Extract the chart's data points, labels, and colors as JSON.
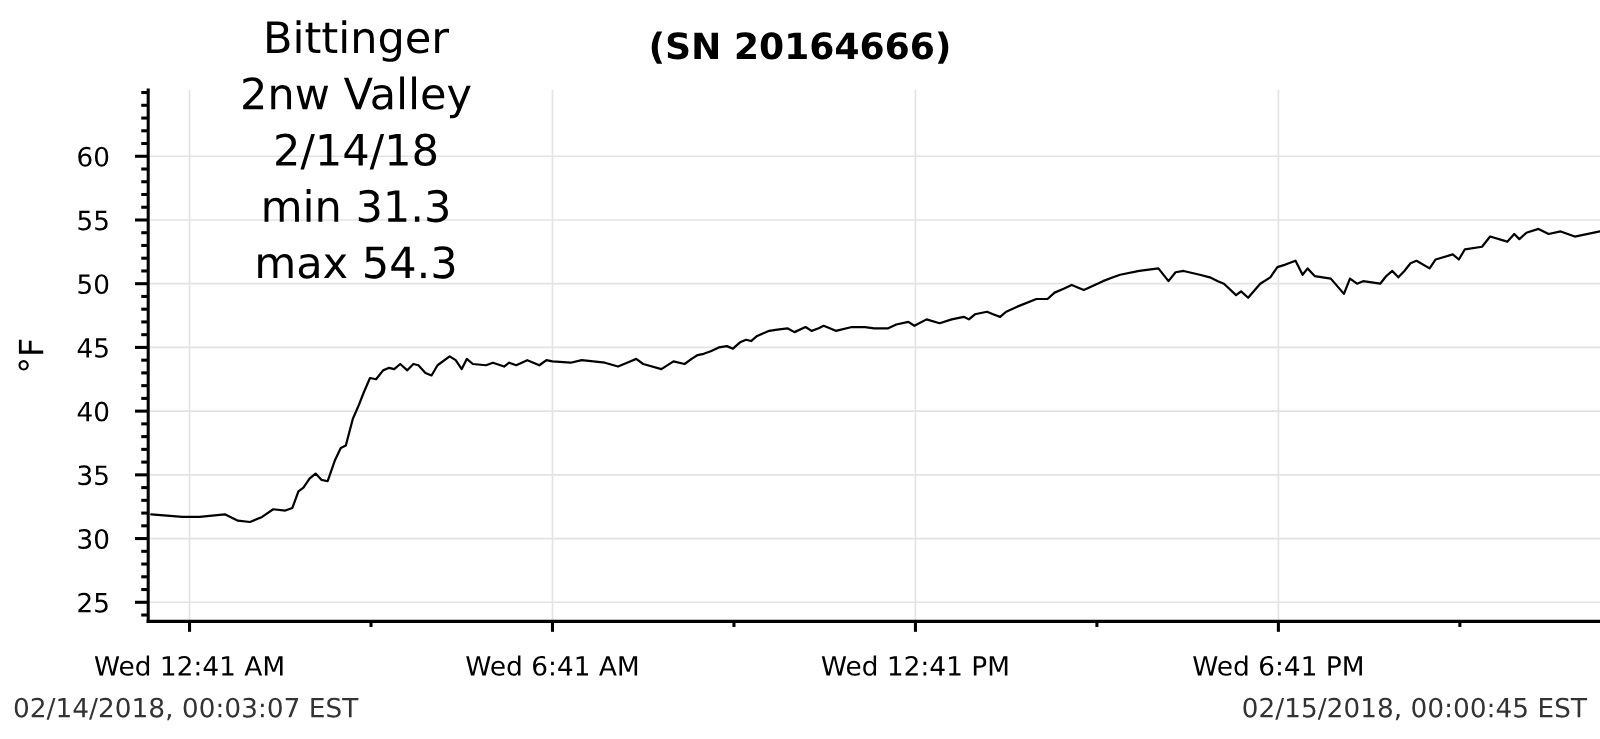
{
  "chart_data": {
    "type": "line",
    "title": "(SN 20164666)",
    "ylabel": "°F",
    "annotations": [
      "Bittinger",
      "2nw Valley",
      "2/14/18",
      "min 31.3",
      "max 54.3",
      "02/14/2018, 00:03:07 EST",
      "02/15/2018, 00:00:45 EST"
    ],
    "x": [
      "2018-02-14T00:03",
      "2018-02-14T00:34",
      "2018-02-14T00:51",
      "2018-02-14T01:16",
      "2018-02-14T01:29",
      "2018-02-14T01:41",
      "2018-02-14T01:53",
      "2018-02-14T02:04",
      "2018-02-14T02:16",
      "2018-02-14T02:23",
      "2018-02-14T02:29",
      "2018-02-14T02:34",
      "2018-02-14T02:40",
      "2018-02-14T02:46",
      "2018-02-14T02:52",
      "2018-02-14T02:58",
      "2018-02-14T03:05",
      "2018-02-14T03:11",
      "2018-02-14T03:16",
      "2018-02-14T03:23",
      "2018-02-14T03:28",
      "2018-02-14T03:34",
      "2018-02-14T03:40",
      "2018-02-14T03:46",
      "2018-02-14T03:53",
      "2018-02-14T03:59",
      "2018-02-14T04:04",
      "2018-02-14T04:10",
      "2018-02-14T04:17",
      "2018-02-14T04:23",
      "2018-02-14T04:28",
      "2018-02-14T04:35",
      "2018-02-14T04:41",
      "2018-02-14T04:47",
      "2018-02-14T04:59",
      "2018-02-14T05:05",
      "2018-02-14T05:11",
      "2018-02-14T05:16",
      "2018-02-14T05:22",
      "2018-02-14T05:35",
      "2018-02-14T05:42",
      "2018-02-14T05:53",
      "2018-02-14T05:58",
      "2018-02-14T06:05",
      "2018-02-14T06:16",
      "2018-02-14T06:28",
      "2018-02-14T06:35",
      "2018-02-14T06:41",
      "2018-02-14T06:59",
      "2018-02-14T07:10",
      "2018-02-14T07:33",
      "2018-02-14T07:46",
      "2018-02-14T07:58",
      "2018-02-14T08:04",
      "2018-02-14T08:11",
      "2018-02-14T08:29",
      "2018-02-14T08:41",
      "2018-02-14T08:52",
      "2018-02-14T08:59",
      "2018-02-14T09:05",
      "2018-02-14T09:11",
      "2018-02-14T09:18",
      "2018-02-14T09:26",
      "2018-02-14T09:34",
      "2018-02-14T09:40",
      "2018-02-14T09:47",
      "2018-02-14T09:53",
      "2018-02-14T09:58",
      "2018-02-14T10:04",
      "2018-02-14T10:16",
      "2018-02-14T10:24",
      "2018-02-14T10:34",
      "2018-02-14T10:41",
      "2018-02-14T10:52",
      "2018-02-14T10:58",
      "2018-02-14T11:05",
      "2018-02-14T11:10",
      "2018-02-14T11:22",
      "2018-02-14T11:38",
      "2018-02-14T11:51",
      "2018-02-14T12:00",
      "2018-02-14T12:14",
      "2018-02-14T12:22",
      "2018-02-14T12:34",
      "2018-02-14T12:40",
      "2018-02-14T12:52",
      "2018-02-14T13:05",
      "2018-02-14T13:17",
      "2018-02-14T13:29",
      "2018-02-14T13:34",
      "2018-02-14T13:40",
      "2018-02-14T13:52",
      "2018-02-14T13:58",
      "2018-02-14T14:05",
      "2018-02-14T14:11",
      "2018-02-14T14:22",
      "2018-02-14T14:41",
      "2018-02-14T14:52",
      "2018-02-14T14:59",
      "2018-02-14T15:08",
      "2018-02-14T15:16",
      "2018-02-14T15:28",
      "2018-02-14T15:47",
      "2018-02-14T15:57",
      "2018-02-14T16:04",
      "2018-02-14T16:23",
      "2018-02-14T16:42",
      "2018-02-14T16:52",
      "2018-02-14T16:59",
      "2018-02-14T17:07",
      "2018-02-14T17:23",
      "2018-02-14T17:33",
      "2018-02-14T17:41",
      "2018-02-14T17:47",
      "2018-02-14T17:59",
      "2018-02-14T18:04",
      "2018-02-14T18:11",
      "2018-02-14T18:23",
      "2018-02-14T18:33",
      "2018-02-14T18:40",
      "2018-02-14T18:48",
      "2018-02-14T18:58",
      "2018-02-14T19:05",
      "2018-02-14T19:10",
      "2018-02-14T19:17",
      "2018-02-14T19:33",
      "2018-02-14T19:46",
      "2018-02-14T19:52",
      "2018-02-14T19:59",
      "2018-02-14T20:05",
      "2018-02-14T20:22",
      "2018-02-14T20:28",
      "2018-02-14T20:34",
      "2018-02-14T20:40",
      "2018-02-14T20:46",
      "2018-02-14T20:52",
      "2018-02-14T20:58",
      "2018-02-14T21:11",
      "2018-02-14T21:17",
      "2018-02-14T21:34",
      "2018-02-14T21:40",
      "2018-02-14T21:46",
      "2018-02-14T22:03",
      "2018-02-14T22:11",
      "2018-02-14T22:28",
      "2018-02-14T22:35",
      "2018-02-14T22:40",
      "2018-02-14T22:47",
      "2018-02-14T22:59",
      "2018-02-14T23:09",
      "2018-02-14T23:21",
      "2018-02-14T23:35",
      "2018-02-15T00:00"
    ],
    "series": [
      {
        "color": "#000000",
        "values": [
          31.9,
          31.7,
          31.7,
          31.9,
          31.4,
          31.3,
          31.7,
          32.3,
          32.2,
          32.4,
          33.7,
          34.0,
          34.7,
          35.1,
          34.6,
          34.5,
          36.1,
          37.1,
          37.3,
          39.4,
          40.3,
          41.5,
          42.6,
          42.5,
          43.2,
          43.4,
          43.3,
          43.7,
          43.2,
          43.7,
          43.6,
          43.0,
          42.8,
          43.6,
          44.3,
          44.0,
          43.3,
          44.1,
          43.7,
          43.6,
          43.8,
          43.5,
          43.8,
          43.6,
          44.0,
          43.6,
          44.0,
          43.9,
          43.8,
          44.0,
          43.8,
          43.5,
          43.9,
          44.1,
          43.7,
          43.3,
          43.9,
          43.7,
          44.1,
          44.4,
          44.5,
          44.7,
          45.0,
          45.1,
          44.9,
          45.4,
          45.6,
          45.5,
          45.9,
          46.3,
          46.4,
          46.5,
          46.2,
          46.6,
          46.3,
          46.5,
          46.7,
          46.3,
          46.6,
          46.6,
          46.5,
          46.5,
          46.8,
          47.0,
          46.7,
          47.2,
          46.9,
          47.2,
          47.4,
          47.2,
          47.6,
          47.8,
          47.6,
          47.4,
          47.8,
          48.2,
          48.8,
          48.8,
          49.3,
          49.6,
          49.9,
          49.5,
          50.2,
          50.5,
          50.7,
          51.0,
          51.2,
          50.2,
          50.9,
          51.0,
          50.7,
          50.5,
          50.2,
          50.0,
          49.1,
          49.4,
          48.9,
          50.0,
          50.5,
          51.3,
          51.5,
          51.8,
          50.7,
          51.2,
          50.6,
          50.4,
          49.2,
          50.4,
          50.0,
          50.2,
          50.0,
          50.6,
          51.0,
          50.5,
          51.0,
          51.6,
          51.8,
          51.2,
          51.9,
          52.3,
          51.9,
          52.7,
          52.9,
          53.7,
          53.3,
          53.9,
          53.5,
          54.0,
          54.3,
          53.9,
          54.1,
          53.7,
          54.1
        ]
      }
    ],
    "xlim": [
      "2018-02-14T00:00",
      "2018-02-15T00:00"
    ],
    "xticks": [
      {
        "value": "2018-02-14T00:41",
        "label": "Wed 12:41 AM"
      },
      {
        "value": "2018-02-14T03:41",
        "label": null
      },
      {
        "value": "2018-02-14T06:41",
        "label": "Wed 6:41 AM"
      },
      {
        "value": "2018-02-14T09:41",
        "label": null
      },
      {
        "value": "2018-02-14T12:41",
        "label": "Wed 12:41 PM"
      },
      {
        "value": "2018-02-14T15:41",
        "label": null
      },
      {
        "value": "2018-02-14T18:41",
        "label": "Wed 6:41 PM"
      },
      {
        "value": "2018-02-14T21:41",
        "label": null
      }
    ],
    "ylim": [
      23.5,
      65.2
    ],
    "yticks": [
      {
        "value": 24,
        "label": null
      },
      25,
      {
        "value": 26,
        "label": null
      },
      {
        "value": 27,
        "label": null
      },
      {
        "value": 28,
        "label": null
      },
      {
        "value": 29,
        "label": null
      },
      30,
      {
        "value": 31,
        "label": null
      },
      {
        "value": 32,
        "label": null
      },
      {
        "value": 33,
        "label": null
      },
      {
        "value": 34,
        "label": null
      },
      35,
      {
        "value": 36,
        "label": null
      },
      {
        "value": 37,
        "label": null
      },
      {
        "value": 38,
        "label": null
      },
      {
        "value": 39,
        "label": null
      },
      40,
      {
        "value": 41,
        "label": null
      },
      {
        "value": 42,
        "label": null
      },
      {
        "value": 43,
        "label": null
      },
      {
        "value": 44,
        "label": null
      },
      45,
      {
        "value": 46,
        "label": null
      },
      {
        "value": 47,
        "label": null
      },
      {
        "value": 48,
        "label": null
      },
      {
        "value": 49,
        "label": null
      },
      50,
      {
        "value": 51,
        "label": null
      },
      {
        "value": 52,
        "label": null
      },
      {
        "value": 53,
        "label": null
      },
      {
        "value": 54,
        "label": null
      },
      55,
      {
        "value": 56,
        "label": null
      },
      {
        "value": 57,
        "label": null
      },
      {
        "value": 58,
        "label": null
      },
      {
        "value": 59,
        "label": null
      },
      60,
      {
        "value": 61,
        "label": null
      },
      {
        "value": 62,
        "label": null
      },
      {
        "value": 63,
        "label": null
      },
      {
        "value": 64,
        "label": null
      },
      {
        "value": 65,
        "label": null
      }
    ],
    "grid": true
  }
}
